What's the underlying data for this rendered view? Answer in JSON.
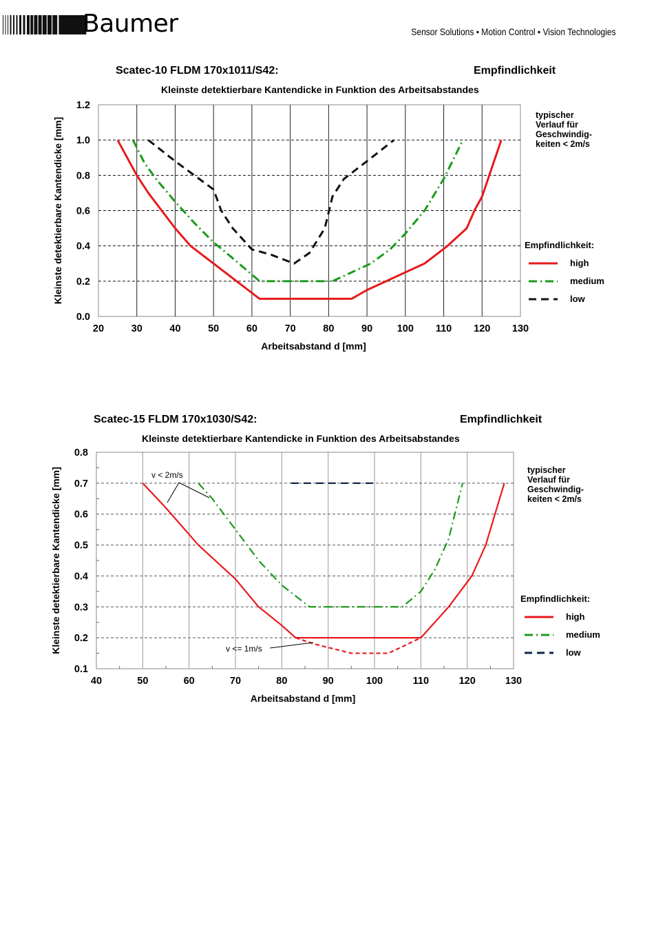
{
  "header": {
    "brand": "Baumer",
    "tagline": "Sensor Solutions • Motion Control • Vision Technologies"
  },
  "colors": {
    "high": "#e8191c",
    "medium": "#1a9a1a",
    "low_1": "#111111",
    "low_2": "#10284a"
  },
  "charts": [
    {
      "title_left": "Scatec-10    FLDM 170x1011/S42:",
      "title_right": "Empfindlichkeit",
      "subtitle": "Kleinste detektierbare Kantendicke in Funktion des Arbeitsabstandes",
      "note": [
        "typischer",
        "Verlauf  für",
        "Geschwindig-",
        "keiten  < 2m/s"
      ],
      "legend_title": "Empfindlichkeit:",
      "legend": [
        "high",
        "medium",
        "low"
      ]
    },
    {
      "title_left": "Scatec-15    FLDM 170x1030/S42:",
      "title_right": "Empfindlichkeit",
      "subtitle": "Kleinste detektierbare Kantendicke in Funktion des Arbeitsabstandes",
      "note": [
        "typischer",
        "Verlauf  für",
        "Geschwindig-",
        "keiten  < 2m/s"
      ],
      "legend_title": "Empfindlichkeit:",
      "legend": [
        "high",
        "medium",
        "low"
      ],
      "annotations": [
        "v < 2m/s",
        "v <= 1m/s"
      ]
    }
  ],
  "chart_data": [
    {
      "type": "line",
      "xlabel": "Arbeitsabstand d  [mm]",
      "ylabel": "Kleinste detektierbare Kantendicke  [mm]",
      "xlim": [
        20,
        130
      ],
      "ylim": [
        0,
        1.2
      ],
      "xticks": [
        20,
        30,
        40,
        50,
        60,
        70,
        80,
        90,
        100,
        110,
        120,
        130
      ],
      "yticks": [
        "0.0",
        "0.2",
        "0.4",
        "0.6",
        "0.8",
        "1.0",
        "1.2"
      ],
      "grid": true,
      "legend_position": "right",
      "series": [
        {
          "name": "high",
          "x": [
            25,
            30,
            33,
            40,
            44,
            50,
            56,
            62,
            86,
            90,
            95,
            100,
            105,
            111,
            116,
            118,
            120,
            125
          ],
          "y": [
            1.0,
            0.8,
            0.7,
            0.5,
            0.4,
            0.3,
            0.2,
            0.1,
            0.1,
            0.15,
            0.2,
            0.25,
            0.3,
            0.4,
            0.5,
            0.6,
            0.68,
            1.0
          ]
        },
        {
          "name": "medium",
          "x": [
            29,
            32,
            35,
            40,
            45,
            50,
            55,
            62,
            72,
            81,
            86,
            91,
            96,
            100,
            105,
            110,
            115
          ],
          "y": [
            1.0,
            0.87,
            0.78,
            0.65,
            0.53,
            0.42,
            0.33,
            0.2,
            0.2,
            0.2,
            0.25,
            0.3,
            0.38,
            0.47,
            0.6,
            0.78,
            1.0
          ]
        },
        {
          "name": "low",
          "x": [
            33,
            40,
            45,
            50,
            52,
            55,
            60,
            65,
            71,
            75,
            79,
            81,
            84,
            90,
            97
          ],
          "y": [
            1.0,
            0.88,
            0.8,
            0.72,
            0.6,
            0.5,
            0.38,
            0.35,
            0.3,
            0.36,
            0.5,
            0.68,
            0.78,
            0.88,
            1.0
          ]
        }
      ]
    },
    {
      "type": "line",
      "xlabel": "Arbeitsabstand d  [mm]",
      "ylabel": "Kleinste detektierbare Kantendicke  [mm]",
      "xlim": [
        40,
        130
      ],
      "ylim": [
        0.1,
        0.8
      ],
      "xticks": [
        40,
        50,
        60,
        70,
        80,
        90,
        100,
        110,
        120,
        130
      ],
      "yticks": [
        "0.1",
        "0.2",
        "0.3",
        "0.4",
        "0.5",
        "0.6",
        "0.7",
        "0.8"
      ],
      "grid": true,
      "legend_position": "right",
      "series": [
        {
          "name": "high",
          "x": [
            50,
            55,
            62,
            70,
            75,
            80,
            83,
            110,
            116,
            121,
            124,
            128
          ],
          "y": [
            0.7,
            0.62,
            0.5,
            0.39,
            0.3,
            0.24,
            0.2,
            0.2,
            0.3,
            0.4,
            0.5,
            0.7
          ]
        },
        {
          "name": "high (v <= 1m/s)",
          "x": [
            83,
            87,
            95,
            103,
            110
          ],
          "y": [
            0.2,
            0.18,
            0.15,
            0.15,
            0.2
          ]
        },
        {
          "name": "medium",
          "x": [
            62,
            65,
            70,
            75,
            80,
            86,
            92,
            100,
            106,
            110,
            113,
            116,
            119
          ],
          "y": [
            0.7,
            0.65,
            0.55,
            0.45,
            0.37,
            0.3,
            0.3,
            0.3,
            0.3,
            0.35,
            0.42,
            0.52,
            0.7
          ]
        },
        {
          "name": "low",
          "x": [
            82,
            100
          ],
          "y": [
            0.7,
            0.7
          ]
        }
      ]
    }
  ]
}
